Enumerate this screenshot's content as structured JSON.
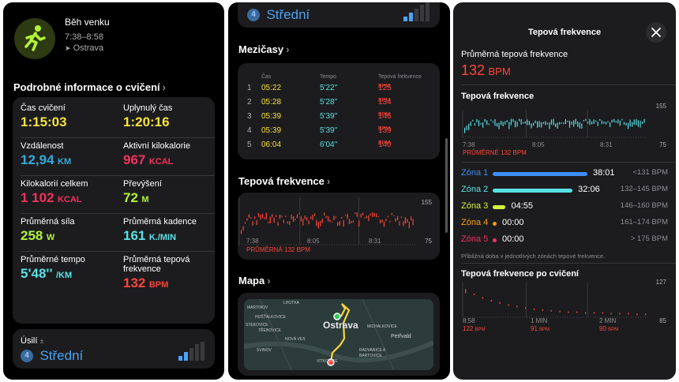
{
  "panel1": {
    "activity_title": "Běh venku",
    "time_range": "7:38–8:58",
    "location": "Ostrava",
    "details_header": "Podrobné informace o cvičení",
    "metrics": [
      {
        "label": "Čas cvičení",
        "value": "1:15:03",
        "unit": "",
        "color": "#f6e33b"
      },
      {
        "label": "Uplynulý čas",
        "value": "1:20:16",
        "unit": "",
        "color": "#f6e33b"
      },
      {
        "label": "Vzdálenost",
        "value": "12,94",
        "unit": "KM",
        "color": "#34aadc"
      },
      {
        "label": "Aktivní kilokalorie",
        "value": "967",
        "unit": "KCAL",
        "color": "#f5315e"
      },
      {
        "label": "Kilokalorií celkem",
        "value": "1 102",
        "unit": "KCAL",
        "color": "#f5315e"
      },
      {
        "label": "Převýšení",
        "value": "72",
        "unit": "M",
        "color": "#b4f437"
      },
      {
        "label": "Průměrná síla",
        "value": "258",
        "unit": "W",
        "color": "#b4f437"
      },
      {
        "label": "Průměrná kadence",
        "value": "161",
        "unit": "K./MIN",
        "color": "#5ae1e6"
      },
      {
        "label": "Průměrné tempo",
        "value": "5'48''",
        "unit": "/KM",
        "color": "#5ae1e6"
      },
      {
        "label": "Průměrná tepová frekvence",
        "value": "132",
        "unit": "BPM",
        "color": "#ff453a"
      }
    ],
    "effort_label": "Úsilí",
    "effort_plusminus": "±",
    "effort_level": "4",
    "effort_value": "Střední"
  },
  "panel2": {
    "effort_level": "4",
    "effort_value": "Střední",
    "splits_header": "Mezičasy",
    "splits_columns": [
      "Čas",
      "Tempo",
      "Tepová frekvence"
    ],
    "splits": [
      {
        "n": "1",
        "time": "05:22",
        "pace": "5'22''",
        "hr": "125",
        "unit": "BPM"
      },
      {
        "n": "2",
        "time": "05:28",
        "pace": "5'28''",
        "hr": "134",
        "unit": "BPM"
      },
      {
        "n": "3",
        "time": "05:39",
        "pace": "5'39''",
        "hr": "146",
        "unit": "BPM"
      },
      {
        "n": "4",
        "time": "05:39",
        "pace": "5'39''",
        "hr": "139",
        "unit": "BPM"
      },
      {
        "n": "5",
        "time": "06:04",
        "pace": "6'04''",
        "hr": "140",
        "unit": "BPM"
      }
    ],
    "hr_header": "Tepová frekvence",
    "hr_chart": {
      "ymax": "155",
      "ymin": "75",
      "x_labels": [
        "7:38",
        "8:05",
        "8:31"
      ],
      "avg_label": "PRŮMĚRNÁ 132 BPM"
    },
    "map_header": "Mapa",
    "map_labels": [
      "MARTINOV",
      "LHOTKA",
      "HOŠŤÁLKOVICE",
      "STEKOVICE",
      "TŘEBOVICE",
      "NOVÁ VES",
      "SVINOV",
      "Ostrava",
      "MICHÁLKOVICE",
      "Petřvald",
      "RADVANICE A BARTOVICE",
      "VÍTKOVICE"
    ]
  },
  "panel3": {
    "title": "Tepová frekvence",
    "avg_label": "Průměrná tepová frekvence",
    "avg_value": "132",
    "avg_unit": "BPM",
    "hr_header": "Tepová frekvence",
    "hr_chart": {
      "ymax": "155",
      "ymin": "75",
      "x_labels": [
        "7:38",
        "8:05",
        "8:31"
      ],
      "avg_label": "PRŮMĚRNÉ 132 BPM"
    },
    "zones": [
      {
        "name": "Zóna 1",
        "time": "38:01",
        "range": "<131 BPM",
        "color": "#3e8ef7",
        "fraction": 0.51
      },
      {
        "name": "Zóna 2",
        "time": "32:06",
        "range": "132–145 BPM",
        "color": "#5ae1e6",
        "fraction": 0.43
      },
      {
        "name": "Zóna 3",
        "time": "04:55",
        "range": "146–160 BPM",
        "color": "#d4f13a",
        "fraction": 0.07
      },
      {
        "name": "Zóna 4",
        "time": "00:00",
        "range": "161–174 BPM",
        "color": "#ff9f0a",
        "fraction": 0
      },
      {
        "name": "Zóna 5",
        "time": "00:00",
        "range": "> 175 BPM",
        "color": "#f5315e",
        "fraction": 0
      }
    ],
    "zones_note": "Přibližná doba v jednotlivých zónách tepové frekvence.",
    "recovery_header": "Tepová frekvence po cvičení",
    "recovery_chart": {
      "ymax": "127",
      "ymin": "85",
      "points": [
        {
          "time": "8:58",
          "value": "122",
          "unit": "BPM"
        },
        {
          "time": "1 MIN",
          "value": "91",
          "unit": "BPM"
        },
        {
          "time": "2 MIN",
          "value": "90",
          "unit": "BPM"
        }
      ]
    }
  }
}
